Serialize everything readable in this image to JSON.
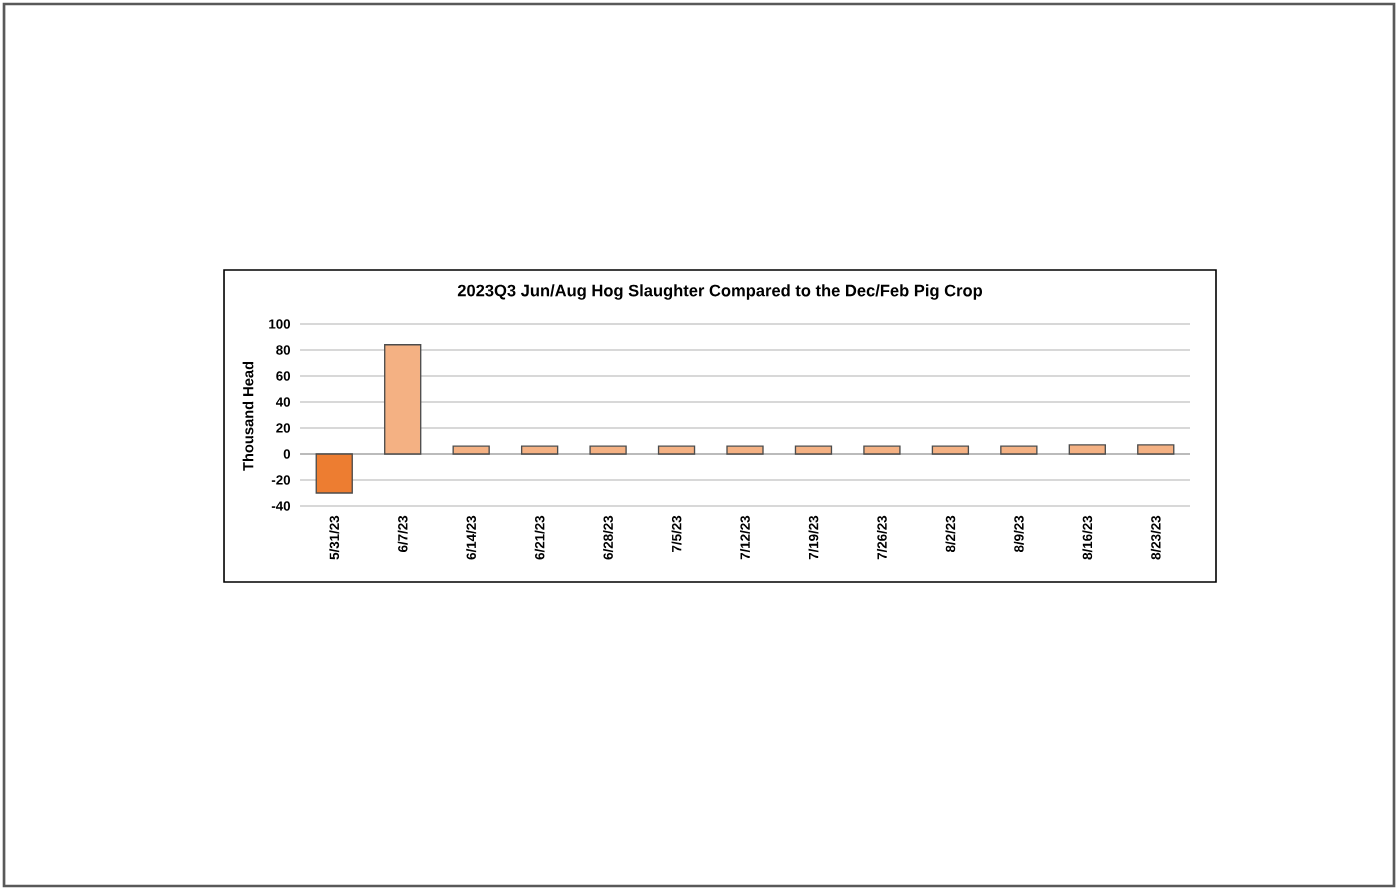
{
  "chart_data": {
    "type": "bar",
    "title": "2023Q3 Jun/Aug Hog Slaughter Compared to the Dec/Feb Pig Crop",
    "ylabel": "Thousand Head",
    "categories": [
      "5/31/23",
      "6/7/23",
      "6/14/23",
      "6/21/23",
      "6/28/23",
      "7/5/23",
      "7/12/23",
      "7/19/23",
      "7/26/23",
      "8/2/23",
      "8/9/23",
      "8/16/23",
      "8/23/23"
    ],
    "values": [
      -30,
      84,
      6,
      6,
      6,
      6,
      6,
      6,
      6,
      6,
      6,
      7,
      7
    ],
    "colors": [
      "#ed7d31",
      "#f4b183",
      "#f4b183",
      "#f4b183",
      "#f4b183",
      "#f4b183",
      "#f4b183",
      "#f4b183",
      "#f4b183",
      "#f4b183",
      "#f4b183",
      "#f4b183",
      "#f4b183"
    ],
    "ylim": [
      -40,
      100
    ],
    "yticks": [
      -40,
      -20,
      0,
      20,
      40,
      60,
      80,
      100
    ],
    "grid": "y"
  }
}
